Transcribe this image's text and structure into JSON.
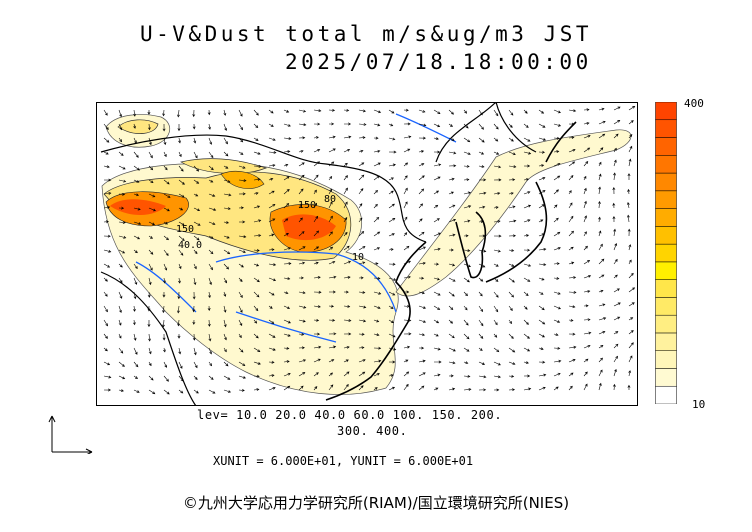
{
  "title": {
    "line1": "U-V&Dust total m/s&ug/m3 JST",
    "line2": "2025/07/18.18:00:00"
  },
  "map": {
    "contour_labels": [
      "150",
      "150",
      "40.0",
      "80",
      "10"
    ]
  },
  "colorbar": {
    "max_label": "400",
    "min_label": "10",
    "colors": [
      "#ffffff",
      "#fffad2",
      "#fff6b9",
      "#fff29e",
      "#ffee82",
      "#ffea66",
      "#ffe64a",
      "#fff000",
      "#ffd400",
      "#ffc000",
      "#ffac00",
      "#ff9a00",
      "#ff8800",
      "#ff7600",
      "#ff6400",
      "#ff5400",
      "#ff4400"
    ]
  },
  "levels": {
    "line1": "lev= 10.0 20.0 40.0 60.0 100. 150. 200.",
    "line2": "300. 400."
  },
  "units": "XUNIT = 6.000E+01, YUNIT = 6.000E+01",
  "credit": "©九州大学応用力学研究所(RIAM)/国立環境研究所(NIES)"
}
